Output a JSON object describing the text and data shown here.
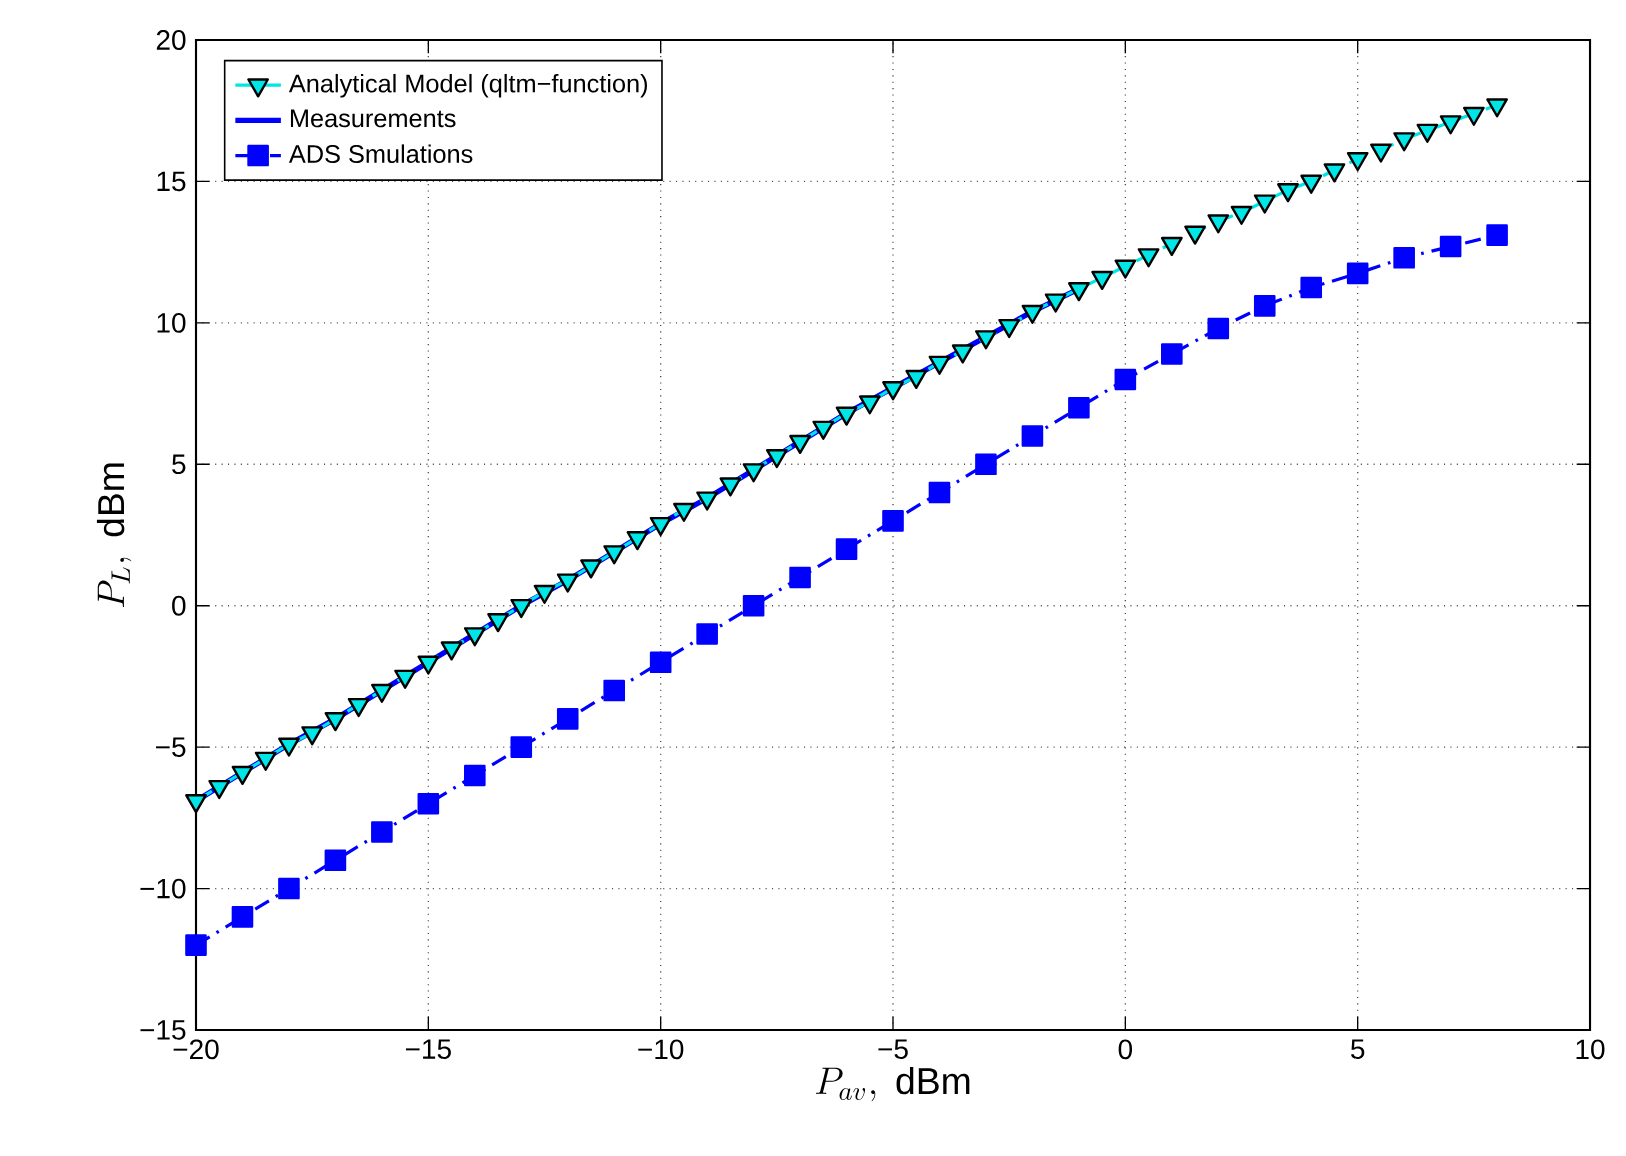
{
  "chart_data": {
    "type": "line",
    "xlabel": "P_{av},\\ \\mathrm{dBm}",
    "ylabel": "P_L,\\ \\mathrm{dBm}",
    "xlim": [
      -20,
      10
    ],
    "ylim": [
      -15,
      20
    ],
    "xticks": [
      {
        "value": -20,
        "label": "−20"
      },
      {
        "value": -15,
        "label": "−15"
      },
      {
        "value": -10,
        "label": "−10"
      },
      {
        "value": -5,
        "label": "−5"
      },
      0,
      5,
      10
    ],
    "yticks": [
      {
        "value": -15,
        "label": "−15"
      },
      {
        "value": -10,
        "label": "−10"
      },
      {
        "value": -5,
        "label": "−5"
      },
      0,
      5,
      10,
      15,
      20
    ],
    "grid": true,
    "legend": "top left",
    "series": [
      {
        "name": "Analytical Model (qltm−function)",
        "color": "#00e5e5",
        "marker": "triangle",
        "line_style": "dashed",
        "x": [
          -20,
          -19.5,
          -19,
          -18.5,
          -18,
          -17.5,
          -17,
          -16.5,
          -16,
          -15.5,
          -15,
          -14.5,
          -14,
          -13.5,
          -13,
          -12.5,
          -12,
          -11.5,
          -11,
          -10.5,
          -10,
          -9.5,
          -9,
          -8.5,
          -8,
          -7.5,
          -7,
          -6.5,
          -6,
          -5.5,
          -5,
          -4.5,
          -4,
          -3.5,
          -3,
          -2.5,
          -2,
          -1.5,
          -1,
          -0.5,
          0,
          0.5,
          1,
          1.5,
          2,
          2.5,
          3,
          3.5,
          4,
          4.5,
          5,
          5.5,
          6,
          6.5,
          7,
          7.5,
          8
        ],
        "values": [
          -6.9,
          -6.4,
          -5.9,
          -5.4,
          -4.9,
          -4.5,
          -4.0,
          -3.5,
          -3.0,
          -2.5,
          -2.0,
          -1.5,
          -1.0,
          -0.5,
          0.0,
          0.5,
          0.9,
          1.4,
          1.9,
          2.4,
          2.9,
          3.4,
          3.8,
          4.3,
          4.8,
          5.3,
          5.8,
          6.3,
          6.8,
          7.2,
          7.7,
          8.1,
          8.6,
          9.0,
          9.5,
          9.9,
          10.4,
          10.8,
          11.2,
          11.6,
          12.0,
          12.4,
          12.8,
          13.2,
          13.6,
          13.9,
          14.3,
          14.7,
          15.0,
          15.4,
          15.8,
          16.1,
          16.5,
          16.8,
          17.1,
          17.4,
          17.7
        ]
      },
      {
        "name": "Measurements",
        "color": "#0000ff",
        "marker": "none",
        "line_style": "solid",
        "x": [
          -20,
          -19,
          -18,
          -17,
          -16,
          -15,
          -14,
          -13,
          -12,
          -11,
          -10,
          -9,
          -8,
          -7,
          -6,
          -5,
          -4,
          -3,
          -2,
          -1
        ],
        "values": [
          -6.9,
          -5.9,
          -4.9,
          -4.0,
          -3.0,
          -2.0,
          -1.0,
          0.0,
          0.9,
          1.9,
          2.9,
          3.8,
          4.8,
          5.8,
          6.8,
          7.7,
          8.6,
          9.5,
          10.4,
          11.2
        ]
      },
      {
        "name": "ADS Smulations",
        "color": "#0000ff",
        "marker": "square",
        "line_style": "dashdot",
        "x": [
          -20,
          -19,
          -18,
          -17,
          -16,
          -15,
          -14,
          -13,
          -12,
          -11,
          -10,
          -9,
          -8,
          -7,
          -6,
          -5,
          -4,
          -3,
          -2,
          -1,
          0,
          1,
          2,
          3,
          4,
          5,
          6,
          7,
          8
        ],
        "values": [
          -12,
          -11,
          -10,
          -9,
          -8,
          -7,
          -6,
          -5,
          -4,
          -3,
          -2,
          -1,
          0,
          1,
          2,
          3,
          4,
          5,
          6,
          7,
          8,
          8.9,
          9.8,
          10.6,
          11.25,
          11.75,
          12.3,
          12.7,
          13.1
        ]
      }
    ]
  }
}
